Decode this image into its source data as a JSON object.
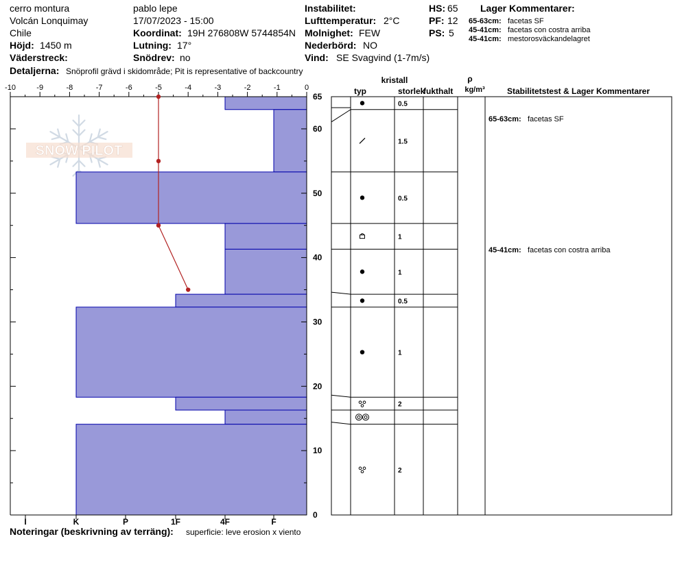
{
  "header": {
    "location": "cerro montura",
    "area": "Volcán Lonquimay",
    "country": "Chile",
    "elevation_label": "Höjd:",
    "elevation_value": "1450 m",
    "aspect_label": "Väderstreck:",
    "aspect_value": "",
    "observer": "pablo lepe",
    "datetime": "17/07/2023 - 15:00",
    "coord_label": "Koordinat:",
    "coord_value": "19H 276808W 5744854N",
    "slope_label": "Lutning:",
    "slope_value": "17°",
    "drift_label": "Snödrev:",
    "drift_value": "no",
    "instability_label": "Instabilitet:",
    "instability_value": "",
    "airtemp_label": "Lufttemperatur:",
    "airtemp_value": "2°C",
    "cloud_label": "Molnighet:",
    "cloud_value": "FEW",
    "precip_label": "Nederbörd:",
    "precip_value": "NO",
    "wind_label": "Vind:",
    "wind_value": "SE  Svagvind (1-7m/s)",
    "hs_label": "HS:",
    "hs_value": "65",
    "pf_label": "PF:",
    "pf_value": "12",
    "ps_label": "PS:",
    "ps_value": "5",
    "layer_comments_title": "Lager Kommentarer:",
    "layer_comments": [
      {
        "range": "65-63cm:",
        "text": "facetas SF"
      },
      {
        "range": "45-41cm:",
        "text": "facetas con costra arriba"
      },
      {
        "range": "45-41cm:",
        "text": "mestorosväckandelagret"
      }
    ],
    "details_label": "Detaljerna:",
    "details_value": "Snöprofil grävd i skidområde;  Pit is representative of backcountry"
  },
  "footer": {
    "notes_label": "Noteringar (beskrivning av terräng):",
    "notes_value": "superficie: leve erosion x viento"
  },
  "table_headers": {
    "crystal": "kristall",
    "type": "typ",
    "size": "storlek",
    "moisture": "fukthalt",
    "rho": "ρ",
    "density_unit": "kg/m³",
    "stability": "Stabilitetstest & Lager Kommentarer"
  },
  "watermark": "SNOW PILOT",
  "chart_data": {
    "type": "bar",
    "hardness_scale": [
      "I",
      "K",
      "P",
      "1F",
      "4F",
      "F"
    ],
    "temp_axis": {
      "label": "",
      "range": [
        -10,
        0
      ],
      "ticks": [
        -10,
        -9,
        -8,
        -7,
        -6,
        -5,
        -4,
        -3,
        -2,
        -1,
        0
      ]
    },
    "height_axis": {
      "label": "",
      "range": [
        0,
        65
      ],
      "ticks": [
        0,
        10,
        20,
        30,
        40,
        50,
        60,
        65
      ]
    },
    "layers": [
      {
        "top": 65,
        "bottom": 63,
        "hardness": "4F",
        "crystal": "round",
        "size": "0.5"
      },
      {
        "top": 63,
        "bottom": 53.3,
        "hardness": "F",
        "crystal": "slash",
        "size": "1.5"
      },
      {
        "top": 53.3,
        "bottom": 45.3,
        "hardness": "K",
        "crystal": "round",
        "size": "0.5"
      },
      {
        "top": 45.3,
        "bottom": 41.3,
        "hardness": "F+",
        "crystal": "facet-crust",
        "size": "1"
      },
      {
        "top": 41.3,
        "bottom": 34.3,
        "hardness": "4F",
        "crystal": "round",
        "size": "1"
      },
      {
        "top": 34.3,
        "bottom": 32.3,
        "hardness": "1F+",
        "crystal": "round",
        "size": "0.5"
      },
      {
        "top": 32.3,
        "bottom": 18.3,
        "hardness": "K",
        "crystal": "round",
        "size": "1"
      },
      {
        "top": 18.3,
        "bottom": 16.3,
        "hardness": "1F+",
        "crystal": "depth-hoar",
        "size": "2"
      },
      {
        "top": 16.3,
        "bottom": 14.1,
        "hardness": "4F",
        "crystal": "double-ring",
        "size": ""
      },
      {
        "top": 14.1,
        "bottom": 0,
        "hardness": "K",
        "crystal": "depth-hoar",
        "size": "2"
      }
    ],
    "temperature_profile": [
      {
        "height": 65,
        "temp": -5
      },
      {
        "height": 55,
        "temp": -5
      },
      {
        "height": 45,
        "temp": -5
      },
      {
        "height": 35,
        "temp": -4
      }
    ]
  },
  "colors": {
    "layer_fill": "#9999d9",
    "layer_stroke": "#0000aa",
    "temp_line": "#b22222"
  }
}
